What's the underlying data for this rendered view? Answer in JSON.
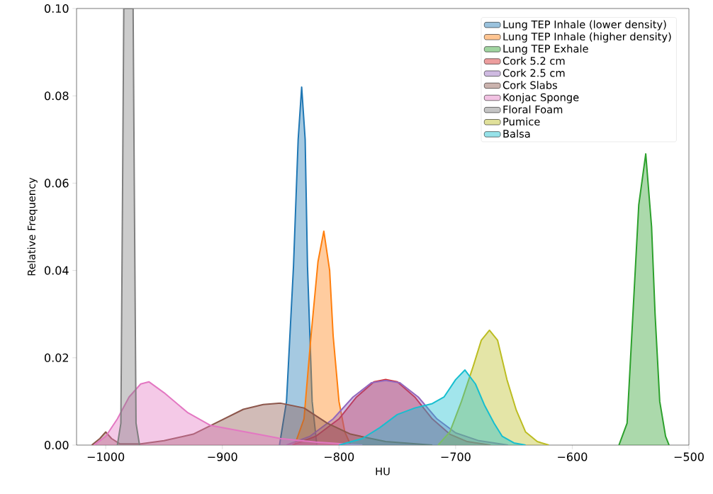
{
  "chart_data": {
    "type": "area",
    "xlabel": "HU",
    "ylabel": "Relative Frequency",
    "xlim": [
      -1025,
      -500
    ],
    "ylim": [
      0,
      0.1
    ],
    "xticks": [
      {
        "value": -1000,
        "label": "−1000"
      },
      {
        "value": -900,
        "label": "−900"
      },
      {
        "value": -800,
        "label": "−800"
      },
      {
        "value": -700,
        "label": "−700"
      },
      {
        "value": -600,
        "label": "−600"
      },
      {
        "value": -500,
        "label": "−500"
      }
    ],
    "yticks": [
      {
        "value": 0,
        "label": "0.00"
      },
      {
        "value": 0.02,
        "label": "0.02"
      },
      {
        "value": 0.04,
        "label": "0.04"
      },
      {
        "value": 0.06,
        "label": "0.06"
      },
      {
        "value": 0.08,
        "label": "0.08"
      },
      {
        "value": 0.1,
        "label": "0.10"
      }
    ],
    "legend": "top right",
    "series": [
      {
        "name": "Lung TEP Inhale (lower density)",
        "color": "#1f77b4",
        "x": [
          -851,
          -845,
          -839,
          -835,
          -832,
          -829,
          -827,
          -823,
          -819
        ],
        "values": [
          0,
          0.01,
          0.041,
          0.07,
          0.082,
          0.07,
          0.041,
          0.01,
          0
        ]
      },
      {
        "name": "Lung TEP Inhale (higher density)",
        "color": "#ff7f0e",
        "x": [
          -838,
          -830,
          -824,
          -818,
          -813,
          -808,
          -805,
          -800,
          -795,
          -790
        ],
        "values": [
          0,
          0.006,
          0.025,
          0.042,
          0.049,
          0.04,
          0.025,
          0.01,
          0.003,
          0
        ]
      },
      {
        "name": "Lung TEP Exhale",
        "color": "#2ca02c",
        "x": [
          -560,
          -553,
          -548,
          -543,
          -537,
          -532,
          -529,
          -525,
          -520,
          -517
        ],
        "values": [
          0,
          0.005,
          0.03,
          0.055,
          0.0667,
          0.05,
          0.03,
          0.01,
          0.002,
          0
        ]
      },
      {
        "name": "Cork 5.2 cm",
        "color": "#d62728",
        "x": [
          -840,
          -820,
          -800,
          -785,
          -770,
          -760,
          -750,
          -735,
          -720,
          -705,
          -690,
          -670
        ],
        "values": [
          0,
          0.002,
          0.006,
          0.011,
          0.0145,
          0.015,
          0.0145,
          0.011,
          0.006,
          0.0025,
          0.0008,
          0
        ]
      },
      {
        "name": "Cork 2.5 cm",
        "color": "#9467bd",
        "x": [
          -845,
          -825,
          -805,
          -788,
          -772,
          -760,
          -748,
          -732,
          -716,
          -700,
          -680,
          -655
        ],
        "values": [
          0,
          0.002,
          0.006,
          0.011,
          0.0143,
          0.0148,
          0.0143,
          0.011,
          0.006,
          0.0028,
          0.001,
          0
        ]
      },
      {
        "name": "Cork Slabs",
        "color": "#8c564b",
        "x": [
          -1012,
          -1005,
          -1000,
          -995,
          -988,
          -970,
          -950,
          -925,
          -906,
          -882,
          -865,
          -850,
          -830,
          -810,
          -790,
          -760,
          -720
        ],
        "values": [
          0,
          0.0015,
          0.003,
          0.0015,
          0.0003,
          0.0003,
          0.001,
          0.0025,
          0.005,
          0.0082,
          0.0093,
          0.0096,
          0.0085,
          0.005,
          0.0025,
          0.0008,
          0
        ]
      },
      {
        "name": "Konjac Sponge",
        "color": "#e377c2",
        "x": [
          -1010,
          -1000,
          -990,
          -980,
          -970,
          -963,
          -950,
          -930,
          -910,
          -890,
          -870,
          -850,
          -820,
          -780
        ],
        "values": [
          0,
          0.002,
          0.006,
          0.011,
          0.014,
          0.0145,
          0.012,
          0.0075,
          0.0045,
          0.0035,
          0.0025,
          0.0015,
          0.0007,
          0
        ]
      },
      {
        "name": "Floral Foam",
        "color": "#7f7f7f",
        "x": [
          -990,
          -987,
          -985.5,
          -984.5,
          -976.5,
          -975.5,
          -974,
          -971
        ],
        "values": [
          0,
          0.005,
          0.06,
          0.1,
          0.1,
          0.06,
          0.005,
          0
        ]
      },
      {
        "name": "Pumice",
        "color": "#bcbd22",
        "x": [
          -715,
          -705,
          -695,
          -685,
          -678,
          -671,
          -664,
          -656,
          -648,
          -640,
          -630,
          -620
        ],
        "values": [
          0,
          0.003,
          0.01,
          0.018,
          0.024,
          0.0263,
          0.024,
          0.015,
          0.008,
          0.003,
          0.0008,
          0
        ]
      },
      {
        "name": "Balsa",
        "color": "#17becf",
        "x": [
          -800,
          -780,
          -765,
          -750,
          -735,
          -720,
          -710,
          -700,
          -692,
          -683,
          -675,
          -667,
          -660,
          -650,
          -640
        ],
        "values": [
          0,
          0.0015,
          0.004,
          0.007,
          0.0085,
          0.0095,
          0.011,
          0.015,
          0.0172,
          0.014,
          0.009,
          0.005,
          0.002,
          0.0005,
          0
        ]
      }
    ]
  }
}
